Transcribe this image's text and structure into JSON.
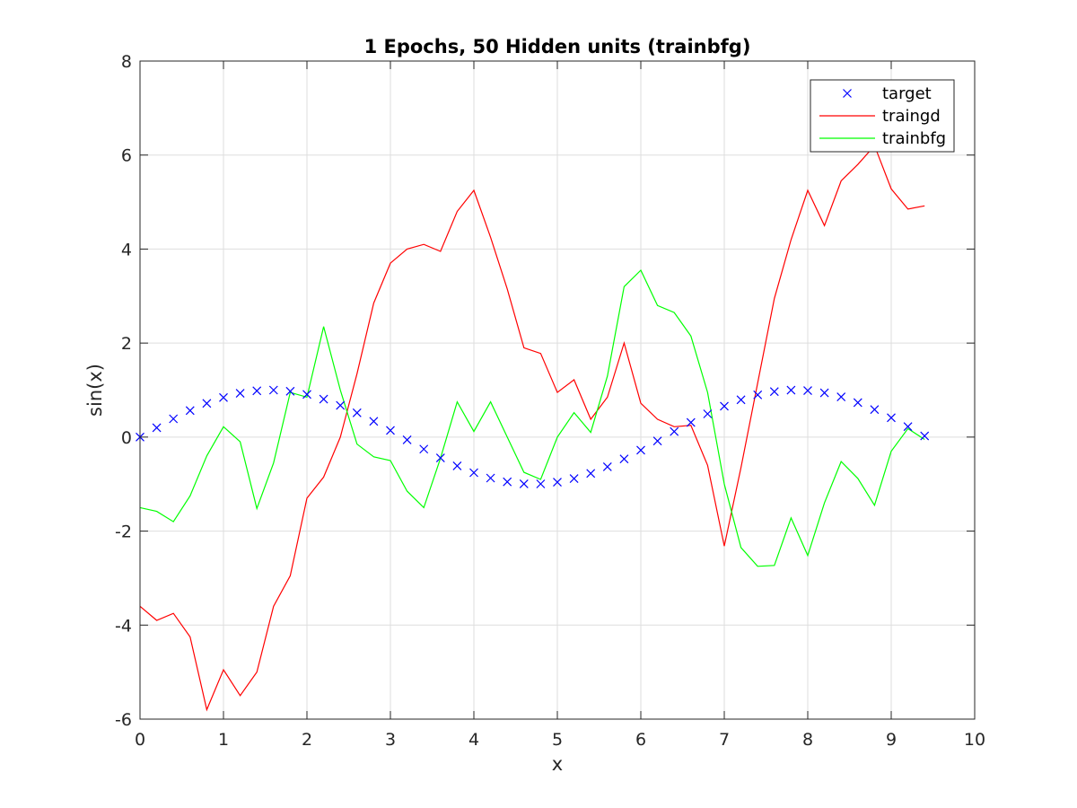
{
  "chart_data": {
    "type": "line",
    "title": "1 Epochs, 50 Hidden units (trainbfg)",
    "xlabel": "x",
    "ylabel": "sin(x)",
    "xlim": [
      0,
      10
    ],
    "ylim": [
      -6,
      8
    ],
    "xticks": [
      0,
      1,
      2,
      3,
      4,
      5,
      6,
      7,
      8,
      9,
      10
    ],
    "yticks": [
      -6,
      -4,
      -2,
      0,
      2,
      4,
      6,
      8
    ],
    "grid": true,
    "legend_position": "top-right",
    "x": [
      0,
      0.2,
      0.4,
      0.6,
      0.8,
      1.0,
      1.2,
      1.4,
      1.6,
      1.8,
      2.0,
      2.2,
      2.4,
      2.6,
      2.8,
      3.0,
      3.2,
      3.4,
      3.6,
      3.8,
      4.0,
      4.2,
      4.4,
      4.6,
      4.8,
      5.0,
      5.2,
      5.4,
      5.6,
      5.8,
      6.0,
      6.2,
      6.4,
      6.6,
      6.8,
      7.0,
      7.2,
      7.4,
      7.6,
      7.8,
      8.0,
      8.2,
      8.4,
      8.6,
      8.8,
      9.0,
      9.2,
      9.4
    ],
    "series": [
      {
        "name": "target",
        "color": "#0000ff",
        "marker": "x",
        "values": [
          0.0,
          0.199,
          0.389,
          0.565,
          0.717,
          0.841,
          0.932,
          0.985,
          1.0,
          0.974,
          0.909,
          0.808,
          0.675,
          0.516,
          0.335,
          0.141,
          -0.058,
          -0.256,
          -0.443,
          -0.612,
          -0.757,
          -0.872,
          -0.952,
          -0.994,
          -0.996,
          -0.959,
          -0.883,
          -0.773,
          -0.631,
          -0.465,
          -0.279,
          -0.083,
          0.117,
          0.312,
          0.494,
          0.657,
          0.794,
          0.899,
          0.968,
          0.999,
          0.989,
          0.941,
          0.855,
          0.734,
          0.585,
          0.412,
          0.223,
          0.025
        ]
      },
      {
        "name": "traingd",
        "color": "#ff0000",
        "marker": "line",
        "values": [
          -3.6,
          -3.9,
          -3.75,
          -4.25,
          -5.8,
          -4.95,
          -5.5,
          -5.0,
          -3.6,
          -2.95,
          -1.3,
          -0.85,
          0.0,
          1.35,
          2.85,
          3.7,
          4.0,
          4.1,
          3.95,
          4.8,
          5.25,
          4.25,
          3.15,
          1.9,
          1.78,
          0.95,
          1.22,
          0.38,
          0.85,
          2.0,
          0.72,
          0.38,
          0.22,
          0.25,
          -0.6,
          -2.32,
          -0.65,
          1.15,
          2.95,
          4.2,
          5.25,
          4.5,
          5.45,
          5.8,
          6.2,
          5.28,
          4.85,
          4.92
        ]
      },
      {
        "name": "trainbfg",
        "color": "#00ff00",
        "marker": "line",
        "values": [
          -1.5,
          -1.58,
          -1.8,
          -1.25,
          -0.4,
          0.22,
          -0.1,
          -1.52,
          -0.55,
          0.95,
          0.85,
          2.35,
          1.0,
          -0.15,
          -0.42,
          -0.5,
          -1.15,
          -1.5,
          -0.45,
          0.75,
          0.12,
          0.75,
          0.0,
          -0.75,
          -0.9,
          0.0,
          0.52,
          0.1,
          1.3,
          3.2,
          3.55,
          2.8,
          2.65,
          2.15,
          0.95,
          -1.0,
          -2.35,
          -2.75,
          -2.73,
          -1.72,
          -2.52,
          -1.4,
          -0.52,
          -0.88,
          -1.45,
          -0.3,
          0.18,
          -0.05
        ]
      }
    ]
  }
}
